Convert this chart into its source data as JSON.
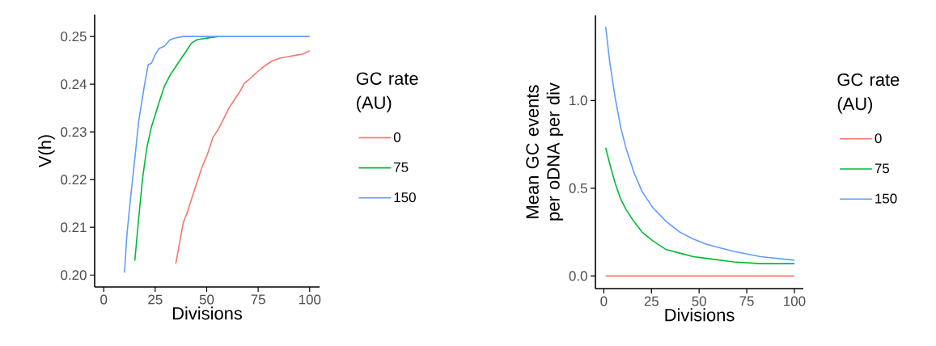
{
  "chart_data": [
    {
      "type": "line",
      "xlabel": "Divisions",
      "ylabel": "V(h)",
      "legend_title": "GC rate (AU)",
      "legend": "right",
      "xlim": [
        -4.4,
        104.8
      ],
      "ylim": [
        0.1975,
        0.2546
      ],
      "xticks": [
        0,
        25,
        50,
        75,
        100
      ],
      "yticks": [
        {
          "value": 0.2,
          "label": "0.20"
        },
        {
          "value": 0.21,
          "label": "0.21"
        },
        {
          "value": 0.22,
          "label": "0.22"
        },
        {
          "value": 0.23,
          "label": "0.23"
        },
        {
          "value": 0.24,
          "label": "0.24"
        },
        {
          "value": 0.25,
          "label": "0.25"
        }
      ],
      "series": [
        {
          "name": "0",
          "color": "#f8766d",
          "x": [
            35.0,
            36.7,
            38.7,
            40.6,
            42.6,
            45.2,
            47.8,
            50.5,
            53.1,
            55.7,
            58.3,
            60.9,
            63.6,
            66.2,
            68.1,
            71.4,
            74.1,
            78.0,
            81.9,
            85.8,
            89.8,
            93.7,
            96.3,
            100
          ],
          "values": [
            0.2024,
            0.2064,
            0.2111,
            0.2131,
            0.2159,
            0.2193,
            0.2227,
            0.2255,
            0.2289,
            0.2306,
            0.2328,
            0.2351,
            0.2368,
            0.2385,
            0.2401,
            0.2413,
            0.2424,
            0.2438,
            0.2449,
            0.2455,
            0.2458,
            0.2461,
            0.2463,
            0.247
          ]
        },
        {
          "name": "75",
          "color": "#00ba38",
          "x": [
            15.1,
            17.0,
            18.9,
            20.9,
            23.2,
            24.9,
            26.9,
            29.5,
            32.1,
            34.7,
            37.3,
            40.0,
            42.6,
            45.2,
            49.1,
            55.7
          ],
          "values": [
            0.203,
            0.212,
            0.2204,
            0.2266,
            0.2311,
            0.2334,
            0.2362,
            0.2396,
            0.2418,
            0.2435,
            0.2452,
            0.2469,
            0.2486,
            0.2493,
            0.2496,
            0.25
          ]
        },
        {
          "name": "150",
          "color": "#619cff",
          "x": [
            10.1,
            11.2,
            13.1,
            15.1,
            17.0,
            19.7,
            21.6,
            23.2,
            24.9,
            26.9,
            29.5,
            32.1,
            34.7,
            38.7,
            47.8,
            100
          ],
          "values": [
            0.2005,
            0.2081,
            0.2165,
            0.2244,
            0.2323,
            0.2396,
            0.2441,
            0.2444,
            0.2461,
            0.2475,
            0.248,
            0.2493,
            0.2497,
            0.25,
            0.25,
            0.25
          ]
        }
      ]
    },
    {
      "type": "line",
      "xlabel": "Divisions",
      "ylabel": "Mean GC events per oDNA per div",
      "legend_title": "GC rate (AU)",
      "legend": "right",
      "xlim": [
        -4.4,
        104.7
      ],
      "ylim": [
        -0.072,
        1.485
      ],
      "xticks": [
        0,
        25,
        50,
        75,
        100
      ],
      "yticks": [
        {
          "value": 0,
          "label": "0.0"
        },
        {
          "value": 0.5,
          "label": "0.5"
        },
        {
          "value": 1.0,
          "label": "1.0"
        }
      ],
      "series": [
        {
          "name": "0",
          "color": "#f8766d",
          "x": [
            1,
            100
          ],
          "values": [
            0,
            0
          ]
        },
        {
          "name": "75",
          "color": "#00ba38",
          "x": [
            1.0,
            3.1,
            5.9,
            8.8,
            11.6,
            15.8,
            20.1,
            25.7,
            32.8,
            39.9,
            47.0,
            54.0,
            68.2,
            82.3,
            100
          ],
          "values": [
            0.73,
            0.64,
            0.53,
            0.44,
            0.38,
            0.31,
            0.25,
            0.2,
            0.15,
            0.13,
            0.11,
            0.1,
            0.08,
            0.07,
            0.07
          ]
        },
        {
          "name": "150",
          "color": "#619cff",
          "x": [
            1.0,
            3.1,
            5.9,
            8.8,
            11.6,
            15.8,
            20.1,
            25.7,
            32.8,
            39.9,
            47.0,
            54.0,
            68.2,
            82.3,
            100
          ],
          "values": [
            1.42,
            1.22,
            1.02,
            0.85,
            0.73,
            0.59,
            0.48,
            0.39,
            0.31,
            0.25,
            0.21,
            0.18,
            0.14,
            0.11,
            0.09
          ]
        }
      ]
    }
  ]
}
